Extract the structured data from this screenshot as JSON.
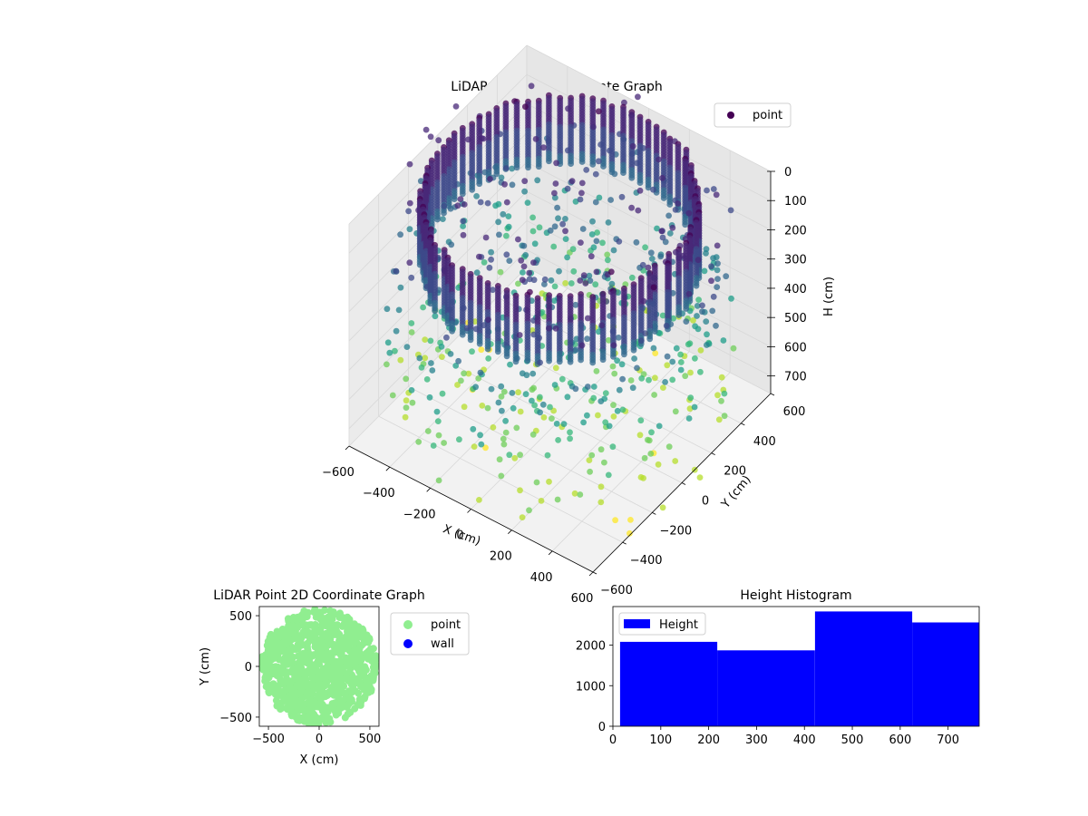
{
  "chart_data": [
    {
      "id": "scatter3d",
      "type": "scatter",
      "projection": "3d",
      "title": "LiDAR Point 3D Coordinate Graph",
      "xlabel": "X (cm)",
      "ylabel": "Y (cm)",
      "zlabel": "H (cm)",
      "xticks": [
        -600,
        -400,
        -200,
        0,
        200,
        400,
        600
      ],
      "yticks": [
        -600,
        -400,
        -200,
        0,
        200,
        400,
        600
      ],
      "zticks": [
        0,
        100,
        200,
        300,
        400,
        500,
        600,
        700
      ],
      "xlim": [
        -600,
        600
      ],
      "ylim": [
        -600,
        600
      ],
      "zlim": [
        0,
        760
      ],
      "z_inverted": true,
      "grid": true,
      "colormap": "viridis",
      "legend": {
        "position": "top-right",
        "entries": [
          {
            "label": "point",
            "color": "#440154"
          }
        ]
      },
      "series": [
        {
          "name": "point",
          "components": [
            {
              "shape": "ring",
              "radius": 550,
              "height_range": [
                0,
                230
              ]
            },
            {
              "shape": "scattered",
              "radius_range": [
                0,
                700
              ],
              "height_range": [
                0,
                760
              ]
            }
          ]
        }
      ]
    },
    {
      "id": "scatter2d",
      "type": "scatter",
      "title": "LiDAR Point 2D Coordinate Graph",
      "xlabel": "X (cm)",
      "ylabel": "Y (cm)",
      "xticks": [
        -500,
        0,
        500
      ],
      "yticks": [
        -500,
        0,
        500
      ],
      "xlim": [
        -590,
        590
      ],
      "ylim": [
        -590,
        590
      ],
      "legend": {
        "position": "outside-right",
        "entries": [
          {
            "label": "point",
            "color": "#90ee90"
          },
          {
            "label": "wall",
            "color": "#0000ff"
          }
        ]
      },
      "series": [
        {
          "name": "point",
          "color": "#90ee90",
          "region": "disc",
          "radius": 570
        },
        {
          "name": "wall",
          "color": "#0000ff",
          "points": []
        }
      ]
    },
    {
      "id": "histogram",
      "type": "bar",
      "title": "Height Histogram",
      "xlabel": "",
      "ylabel": "",
      "xticks": [
        0,
        100,
        200,
        300,
        400,
        500,
        600,
        700
      ],
      "yticks": [
        0,
        1000,
        2000
      ],
      "xlim": [
        0,
        765
      ],
      "ylim": [
        0,
        2950
      ],
      "legend": {
        "position": "top-left",
        "entries": [
          {
            "label": "Height",
            "color": "#0000ff"
          }
        ]
      },
      "color": "#0000ff",
      "bins": [
        {
          "x0": 15,
          "x1": 218,
          "value": 2080
        },
        {
          "x0": 218,
          "x1": 422,
          "value": 1870
        },
        {
          "x0": 422,
          "x1": 625,
          "value": 2830
        },
        {
          "x0": 625,
          "x1": 765,
          "value": 2560
        }
      ]
    }
  ]
}
